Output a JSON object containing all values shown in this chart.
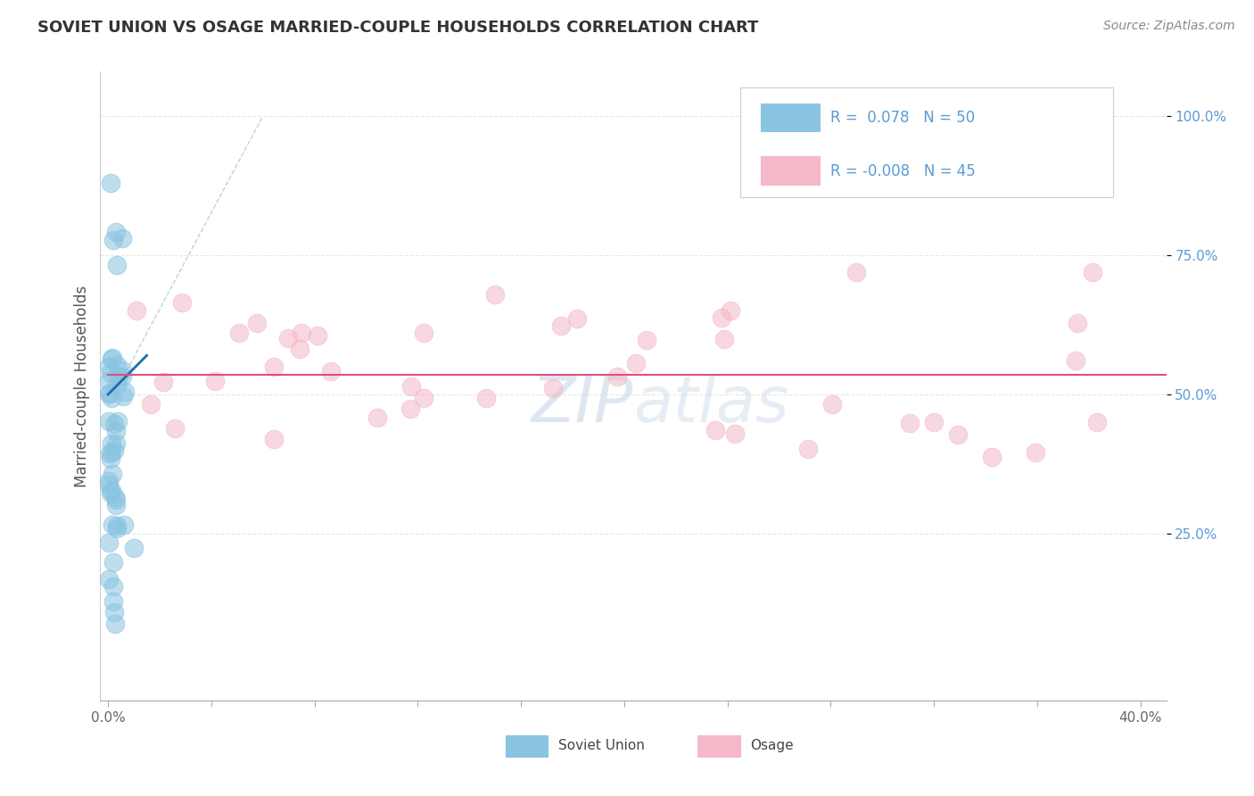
{
  "title": "SOVIET UNION VS OSAGE MARRIED-COUPLE HOUSEHOLDS CORRELATION CHART",
  "source": "Source: ZipAtlas.com",
  "ylabel": "Married-couple Households",
  "xlim": [
    -0.3,
    41.0
  ],
  "ylim": [
    -5,
    108
  ],
  "yticks": [
    25.0,
    50.0,
    75.0,
    100.0
  ],
  "ytick_labels": [
    "25.0%",
    "50.0%",
    "75.0%",
    "100.0%"
  ],
  "legend_label_soviet": "Soviet Union",
  "legend_label_osage": "Osage",
  "blue_color": "#89c4e1",
  "blue_edge": "#89c4e1",
  "pink_color": "#f4b8c8",
  "pink_edge": "#f4b8c8",
  "blue_trend_color": "#1a6faf",
  "pink_trend_color": "#e05080",
  "diag_color": "#b0c4d8",
  "watermark_color": "#c8d8e8",
  "title_color": "#333333",
  "source_color": "#888888",
  "grid_color": "#e0e0e0",
  "ytick_color": "#5b9bd5",
  "stat_color": "#5b9bd5",
  "soviet_seed": 17,
  "osage_seed": 42,
  "r_soviet": 0.078,
  "n_soviet": 50,
  "r_osage": -0.008,
  "n_osage": 45
}
